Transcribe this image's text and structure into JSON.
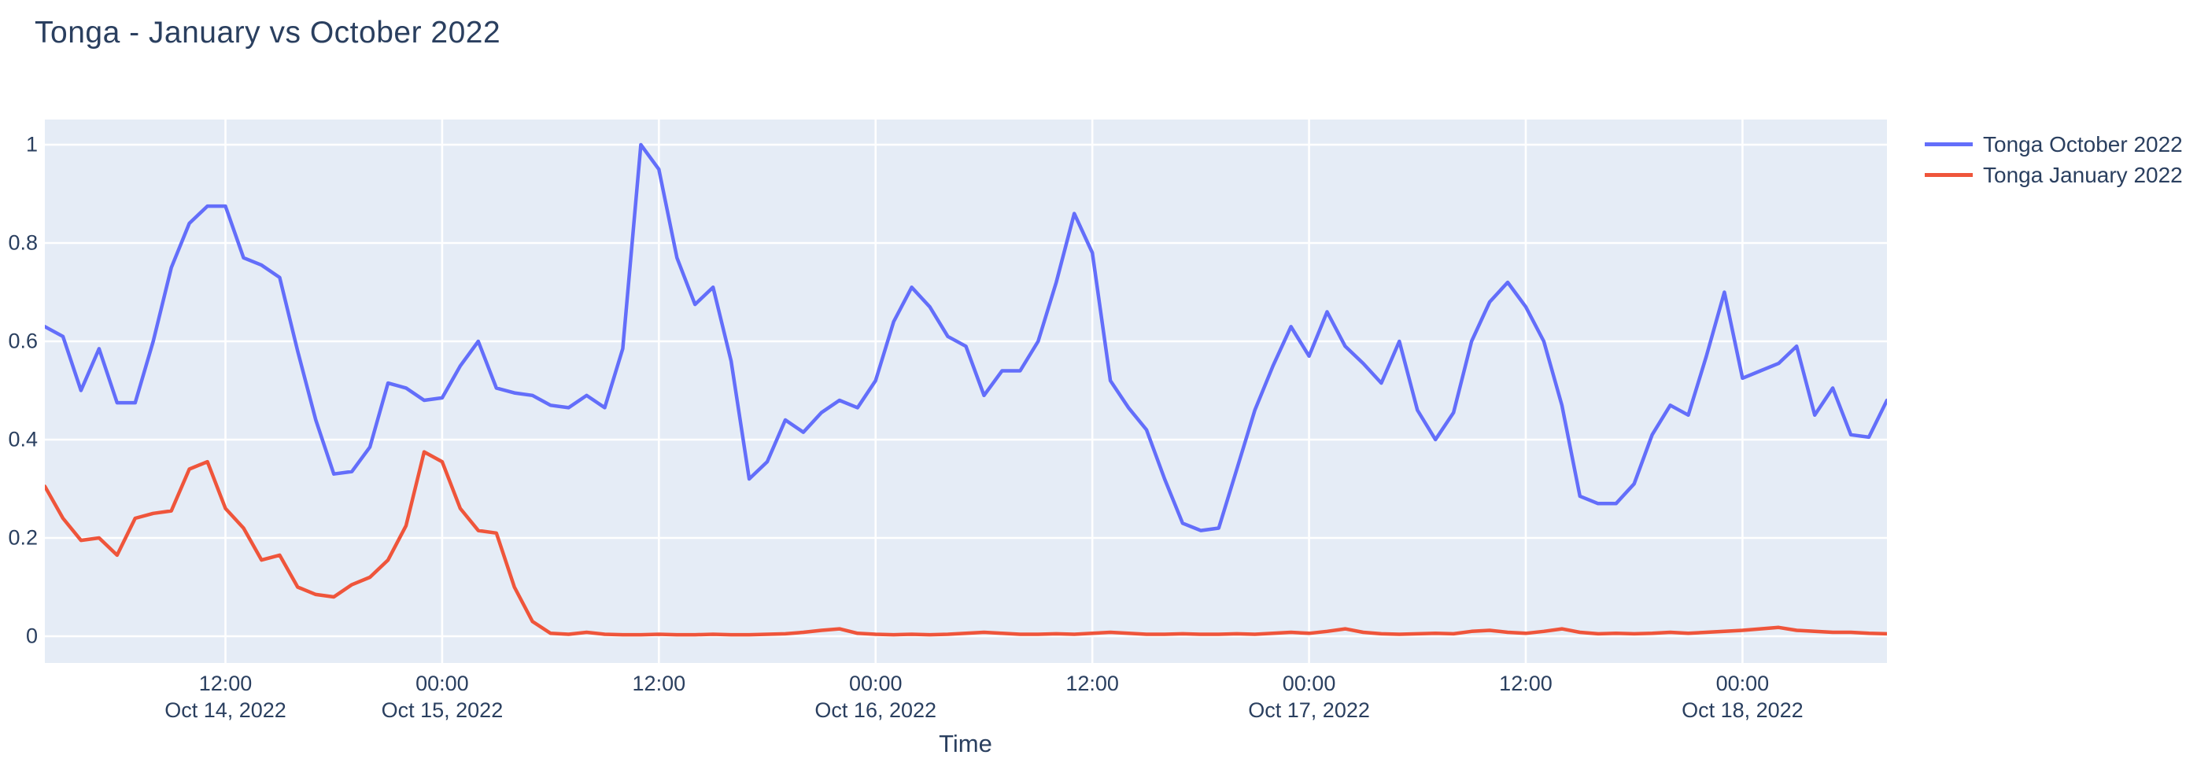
{
  "title": "Tonga - January vs October 2022",
  "colors": {
    "text": "#2a3f5f",
    "plot_background": "#E5ECF6",
    "gridline": "#FFFFFF",
    "october_series": "#636EFA",
    "january_series": "#EF553B"
  },
  "legend": {
    "position": "top-right",
    "items": [
      {
        "label": "Tonga October 2022",
        "color": "#636EFA"
      },
      {
        "label": "Tonga January 2022",
        "color": "#EF553B"
      }
    ]
  },
  "axes": {
    "x_title": "Time",
    "y_ticks": [
      {
        "v": 0,
        "label": "0"
      },
      {
        "v": 0.2,
        "label": "0.2"
      },
      {
        "v": 0.4,
        "label": "0.4"
      },
      {
        "v": 0.6,
        "label": "0.6"
      },
      {
        "v": 0.8,
        "label": "0.8"
      },
      {
        "v": 1,
        "label": "1"
      }
    ],
    "x_ticks": [
      {
        "hour_index": 10,
        "time": "12:00",
        "date": "Oct 14, 2022"
      },
      {
        "hour_index": 22,
        "time": "00:00",
        "date": "Oct 15, 2022"
      },
      {
        "hour_index": 34,
        "time": "12:00",
        "date": ""
      },
      {
        "hour_index": 46,
        "time": "00:00",
        "date": "Oct 16, 2022"
      },
      {
        "hour_index": 58,
        "time": "12:00",
        "date": ""
      },
      {
        "hour_index": 70,
        "time": "00:00",
        "date": "Oct 17, 2022"
      },
      {
        "hour_index": 82,
        "time": "12:00",
        "date": ""
      },
      {
        "hour_index": 94,
        "time": "00:00",
        "date": "Oct 18, 2022"
      }
    ]
  },
  "chart_data": {
    "type": "line",
    "title": "Tonga - January vs October 2022",
    "xlabel": "Time",
    "ylabel": "",
    "ylim": [
      0,
      1
    ],
    "grid": true,
    "legend_position": "top-right",
    "x_start": "2022-10-14 02:00",
    "x_step_hours": 1,
    "x_end": "2022-10-18 08:00",
    "x": [
      "2022-10-14 02:00",
      "2022-10-14 03:00",
      "2022-10-14 04:00",
      "2022-10-14 05:00",
      "2022-10-14 06:00",
      "2022-10-14 07:00",
      "2022-10-14 08:00",
      "2022-10-14 09:00",
      "2022-10-14 10:00",
      "2022-10-14 11:00",
      "2022-10-14 12:00",
      "2022-10-14 13:00",
      "2022-10-14 14:00",
      "2022-10-14 15:00",
      "2022-10-14 16:00",
      "2022-10-14 17:00",
      "2022-10-14 18:00",
      "2022-10-14 19:00",
      "2022-10-14 20:00",
      "2022-10-14 21:00",
      "2022-10-14 22:00",
      "2022-10-14 23:00",
      "2022-10-15 00:00",
      "2022-10-15 01:00",
      "2022-10-15 02:00",
      "2022-10-15 03:00",
      "2022-10-15 04:00",
      "2022-10-15 05:00",
      "2022-10-15 06:00",
      "2022-10-15 07:00",
      "2022-10-15 08:00",
      "2022-10-15 09:00",
      "2022-10-15 10:00",
      "2022-10-15 11:00",
      "2022-10-15 12:00",
      "2022-10-15 13:00",
      "2022-10-15 14:00",
      "2022-10-15 15:00",
      "2022-10-15 16:00",
      "2022-10-15 17:00",
      "2022-10-15 18:00",
      "2022-10-15 19:00",
      "2022-10-15 20:00",
      "2022-10-15 21:00",
      "2022-10-15 22:00",
      "2022-10-15 23:00",
      "2022-10-16 00:00",
      "2022-10-16 01:00",
      "2022-10-16 02:00",
      "2022-10-16 03:00",
      "2022-10-16 04:00",
      "2022-10-16 05:00",
      "2022-10-16 06:00",
      "2022-10-16 07:00",
      "2022-10-16 08:00",
      "2022-10-16 09:00",
      "2022-10-16 10:00",
      "2022-10-16 11:00",
      "2022-10-16 12:00",
      "2022-10-16 13:00",
      "2022-10-16 14:00",
      "2022-10-16 15:00",
      "2022-10-16 16:00",
      "2022-10-16 17:00",
      "2022-10-16 18:00",
      "2022-10-16 19:00",
      "2022-10-16 20:00",
      "2022-10-16 21:00",
      "2022-10-16 22:00",
      "2022-10-16 23:00",
      "2022-10-17 00:00",
      "2022-10-17 01:00",
      "2022-10-17 02:00",
      "2022-10-17 03:00",
      "2022-10-17 04:00",
      "2022-10-17 05:00",
      "2022-10-17 06:00",
      "2022-10-17 07:00",
      "2022-10-17 08:00",
      "2022-10-17 09:00",
      "2022-10-17 10:00",
      "2022-10-17 11:00",
      "2022-10-17 12:00",
      "2022-10-17 13:00",
      "2022-10-17 14:00",
      "2022-10-17 15:00",
      "2022-10-17 16:00",
      "2022-10-17 17:00",
      "2022-10-17 18:00",
      "2022-10-17 19:00",
      "2022-10-17 20:00",
      "2022-10-17 21:00",
      "2022-10-17 22:00",
      "2022-10-17 23:00",
      "2022-10-18 00:00",
      "2022-10-18 01:00",
      "2022-10-18 02:00",
      "2022-10-18 03:00",
      "2022-10-18 04:00",
      "2022-10-18 05:00",
      "2022-10-18 06:00",
      "2022-10-18 07:00",
      "2022-10-18 08:00"
    ],
    "series": [
      {
        "name": "Tonga October 2022",
        "color": "#636EFA",
        "values": [
          0.63,
          0.61,
          0.5,
          0.585,
          0.475,
          0.475,
          0.6,
          0.75,
          0.84,
          0.875,
          0.875,
          0.77,
          0.755,
          0.73,
          0.58,
          0.44,
          0.33,
          0.335,
          0.385,
          0.515,
          0.505,
          0.48,
          0.485,
          0.55,
          0.6,
          0.505,
          0.495,
          0.49,
          0.47,
          0.465,
          0.49,
          0.465,
          0.585,
          1.0,
          0.95,
          0.77,
          0.675,
          0.71,
          0.56,
          0.32,
          0.355,
          0.44,
          0.415,
          0.455,
          0.48,
          0.465,
          0.52,
          0.64,
          0.71,
          0.67,
          0.61,
          0.59,
          0.49,
          0.54,
          0.54,
          0.6,
          0.72,
          0.86,
          0.78,
          0.52,
          0.465,
          0.42,
          0.32,
          0.23,
          0.215,
          0.22,
          0.34,
          0.46,
          0.55,
          0.63,
          0.57,
          0.66,
          0.59,
          0.555,
          0.515,
          0.6,
          0.46,
          0.4,
          0.455,
          0.6,
          0.68,
          0.72,
          0.67,
          0.6,
          0.47,
          0.285,
          0.27,
          0.27,
          0.31,
          0.41,
          0.47,
          0.45,
          0.57,
          0.7,
          0.525,
          0.54,
          0.555,
          0.59,
          0.45,
          0.505,
          0.41,
          0.405,
          0.48
        ]
      },
      {
        "name": "Tonga January 2022",
        "color": "#EF553B",
        "values": [
          0.305,
          0.24,
          0.195,
          0.2,
          0.165,
          0.24,
          0.25,
          0.255,
          0.34,
          0.355,
          0.26,
          0.22,
          0.155,
          0.165,
          0.1,
          0.085,
          0.08,
          0.105,
          0.12,
          0.155,
          0.225,
          0.375,
          0.355,
          0.26,
          0.215,
          0.21,
          0.1,
          0.03,
          0.006,
          0.004,
          0.008,
          0.004,
          0.003,
          0.003,
          0.004,
          0.003,
          0.003,
          0.004,
          0.003,
          0.003,
          0.004,
          0.005,
          0.008,
          0.012,
          0.015,
          0.006,
          0.004,
          0.003,
          0.004,
          0.003,
          0.004,
          0.006,
          0.008,
          0.006,
          0.004,
          0.004,
          0.005,
          0.004,
          0.006,
          0.008,
          0.006,
          0.004,
          0.004,
          0.005,
          0.004,
          0.004,
          0.005,
          0.004,
          0.006,
          0.008,
          0.006,
          0.01,
          0.015,
          0.008,
          0.005,
          0.004,
          0.005,
          0.006,
          0.005,
          0.01,
          0.012,
          0.008,
          0.006,
          0.01,
          0.015,
          0.008,
          0.005,
          0.006,
          0.005,
          0.006,
          0.008,
          0.006,
          0.008,
          0.01,
          0.012,
          0.015,
          0.018,
          0.012,
          0.01,
          0.008,
          0.008,
          0.006,
          0.005
        ]
      }
    ]
  }
}
